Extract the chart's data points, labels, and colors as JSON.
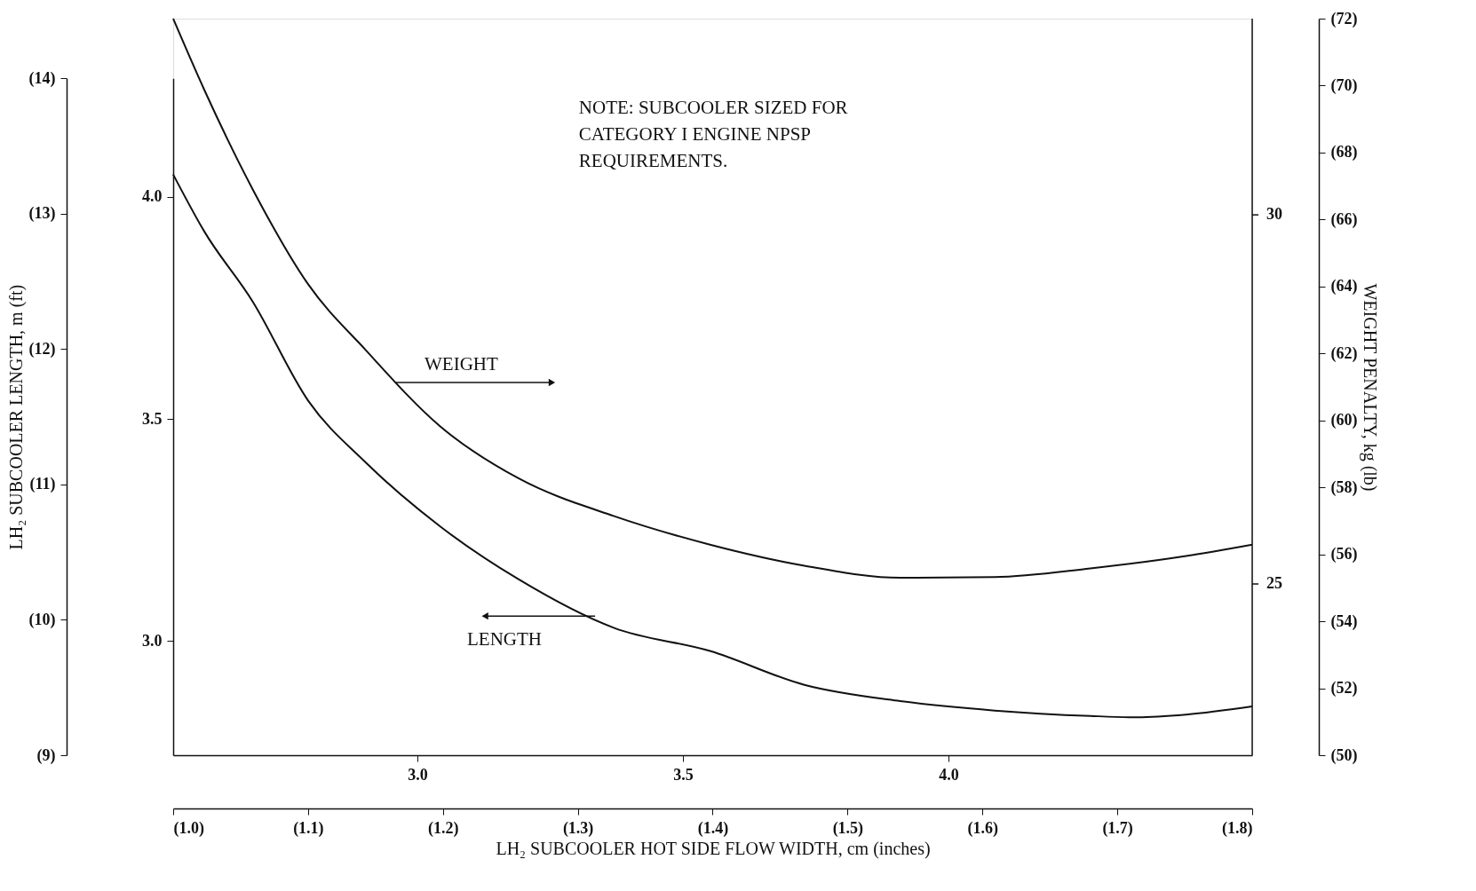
{
  "chart_data": {
    "type": "line",
    "xlabel": "LH₂ SUBCOOLER HOT SIDE FLOW WIDTH, cm (inches)",
    "ylabel": "LH₂ SUBCOOLER LENGTH, m (ft)",
    "y2label": "WEIGHT PENALTY, kg (lb)",
    "xlim": [
      1.0,
      1.8
    ],
    "xticks": [
      {
        "value": 1.0,
        "label": "(1.0)"
      },
      {
        "value": 1.1,
        "label": "(1.1)"
      },
      {
        "value": 1.2,
        "label": "(1.2)"
      },
      {
        "value": 1.3,
        "label": "(1.3)"
      },
      {
        "value": 1.4,
        "label": "(1.4)"
      },
      {
        "value": 1.5,
        "label": "(1.5)"
      },
      {
        "value": 1.6,
        "label": "(1.6)"
      },
      {
        "value": 1.7,
        "label": "(1.7)"
      },
      {
        "value": 1.8,
        "label": "(1.8)"
      }
    ],
    "x2lim": [
      2.54,
      4.572
    ],
    "x2ticks": [
      {
        "value": 3.0,
        "label": "3.0"
      },
      {
        "value": 3.5,
        "label": "3.5"
      },
      {
        "value": 4.0,
        "label": "4.0"
      }
    ],
    "ylim": [
      9,
      14
    ],
    "yticks": [
      {
        "value": 9,
        "label": "(9)"
      },
      {
        "value": 10,
        "label": "(10)"
      },
      {
        "value": 11,
        "label": "(11)"
      },
      {
        "value": 12,
        "label": "(12)"
      },
      {
        "value": 13,
        "label": "(13)"
      },
      {
        "value": 14,
        "label": "(14)"
      }
    ],
    "y3lim": [
      2.7432,
      4.2672
    ],
    "y3ticks": [
      {
        "value": 3.0,
        "label": "3.0"
      },
      {
        "value": 3.5,
        "label": "3.5"
      },
      {
        "value": 4.0,
        "label": "4.0"
      }
    ],
    "y2lim": [
      50,
      72
    ],
    "y2ticks": [
      {
        "value": 50,
        "label": "(50)"
      },
      {
        "value": 52,
        "label": "(52)"
      },
      {
        "value": 54,
        "label": "(54)"
      },
      {
        "value": 56,
        "label": "(56)"
      },
      {
        "value": 58,
        "label": "(58)"
      },
      {
        "value": 60,
        "label": "(60)"
      },
      {
        "value": 62,
        "label": "(62)"
      },
      {
        "value": 64,
        "label": "(64)"
      },
      {
        "value": 66,
        "label": "(66)"
      },
      {
        "value": 68,
        "label": "(68)"
      },
      {
        "value": 70,
        "label": "(70)"
      },
      {
        "value": 72,
        "label": "(72)"
      }
    ],
    "series": [
      {
        "color": "#111111",
        "x": [
          1.0,
          1.023,
          1.059,
          1.1,
          1.143,
          1.198,
          1.256,
          1.327,
          1.398,
          1.468,
          1.539,
          1.609,
          1.68,
          1.715,
          1.751,
          1.8
        ],
        "values": [
          13.29,
          12.87,
          12.35,
          11.62,
          11.16,
          10.69,
          10.3,
          9.94,
          9.77,
          9.52,
          9.4,
          9.33,
          9.29,
          9.28,
          9.3,
          9.36
        ]
      },
      {
        "color": "#111111",
        "axis": "y2",
        "x": [
          1.0,
          1.023,
          1.059,
          1.1,
          1.143,
          1.198,
          1.256,
          1.327,
          1.398,
          1.468,
          1.539,
          1.609,
          1.68,
          1.751,
          1.8
        ],
        "values": [
          72,
          69.88,
          66.9,
          64.07,
          62.09,
          59.82,
          58.27,
          57.14,
          56.29,
          55.66,
          55.3,
          55.32,
          55.58,
          55.95,
          56.29
        ]
      }
    ],
    "annotations": [
      "NOTE:  SUBCOOLER SIZED FOR\nCATEGORY I ENGINE NPSP\nREQUIREMENTS.",
      "WEIGHT",
      "LENGTH",
      "30",
      "25"
    ],
    "grid": false,
    "marker": "none",
    "line_style": "solid"
  }
}
